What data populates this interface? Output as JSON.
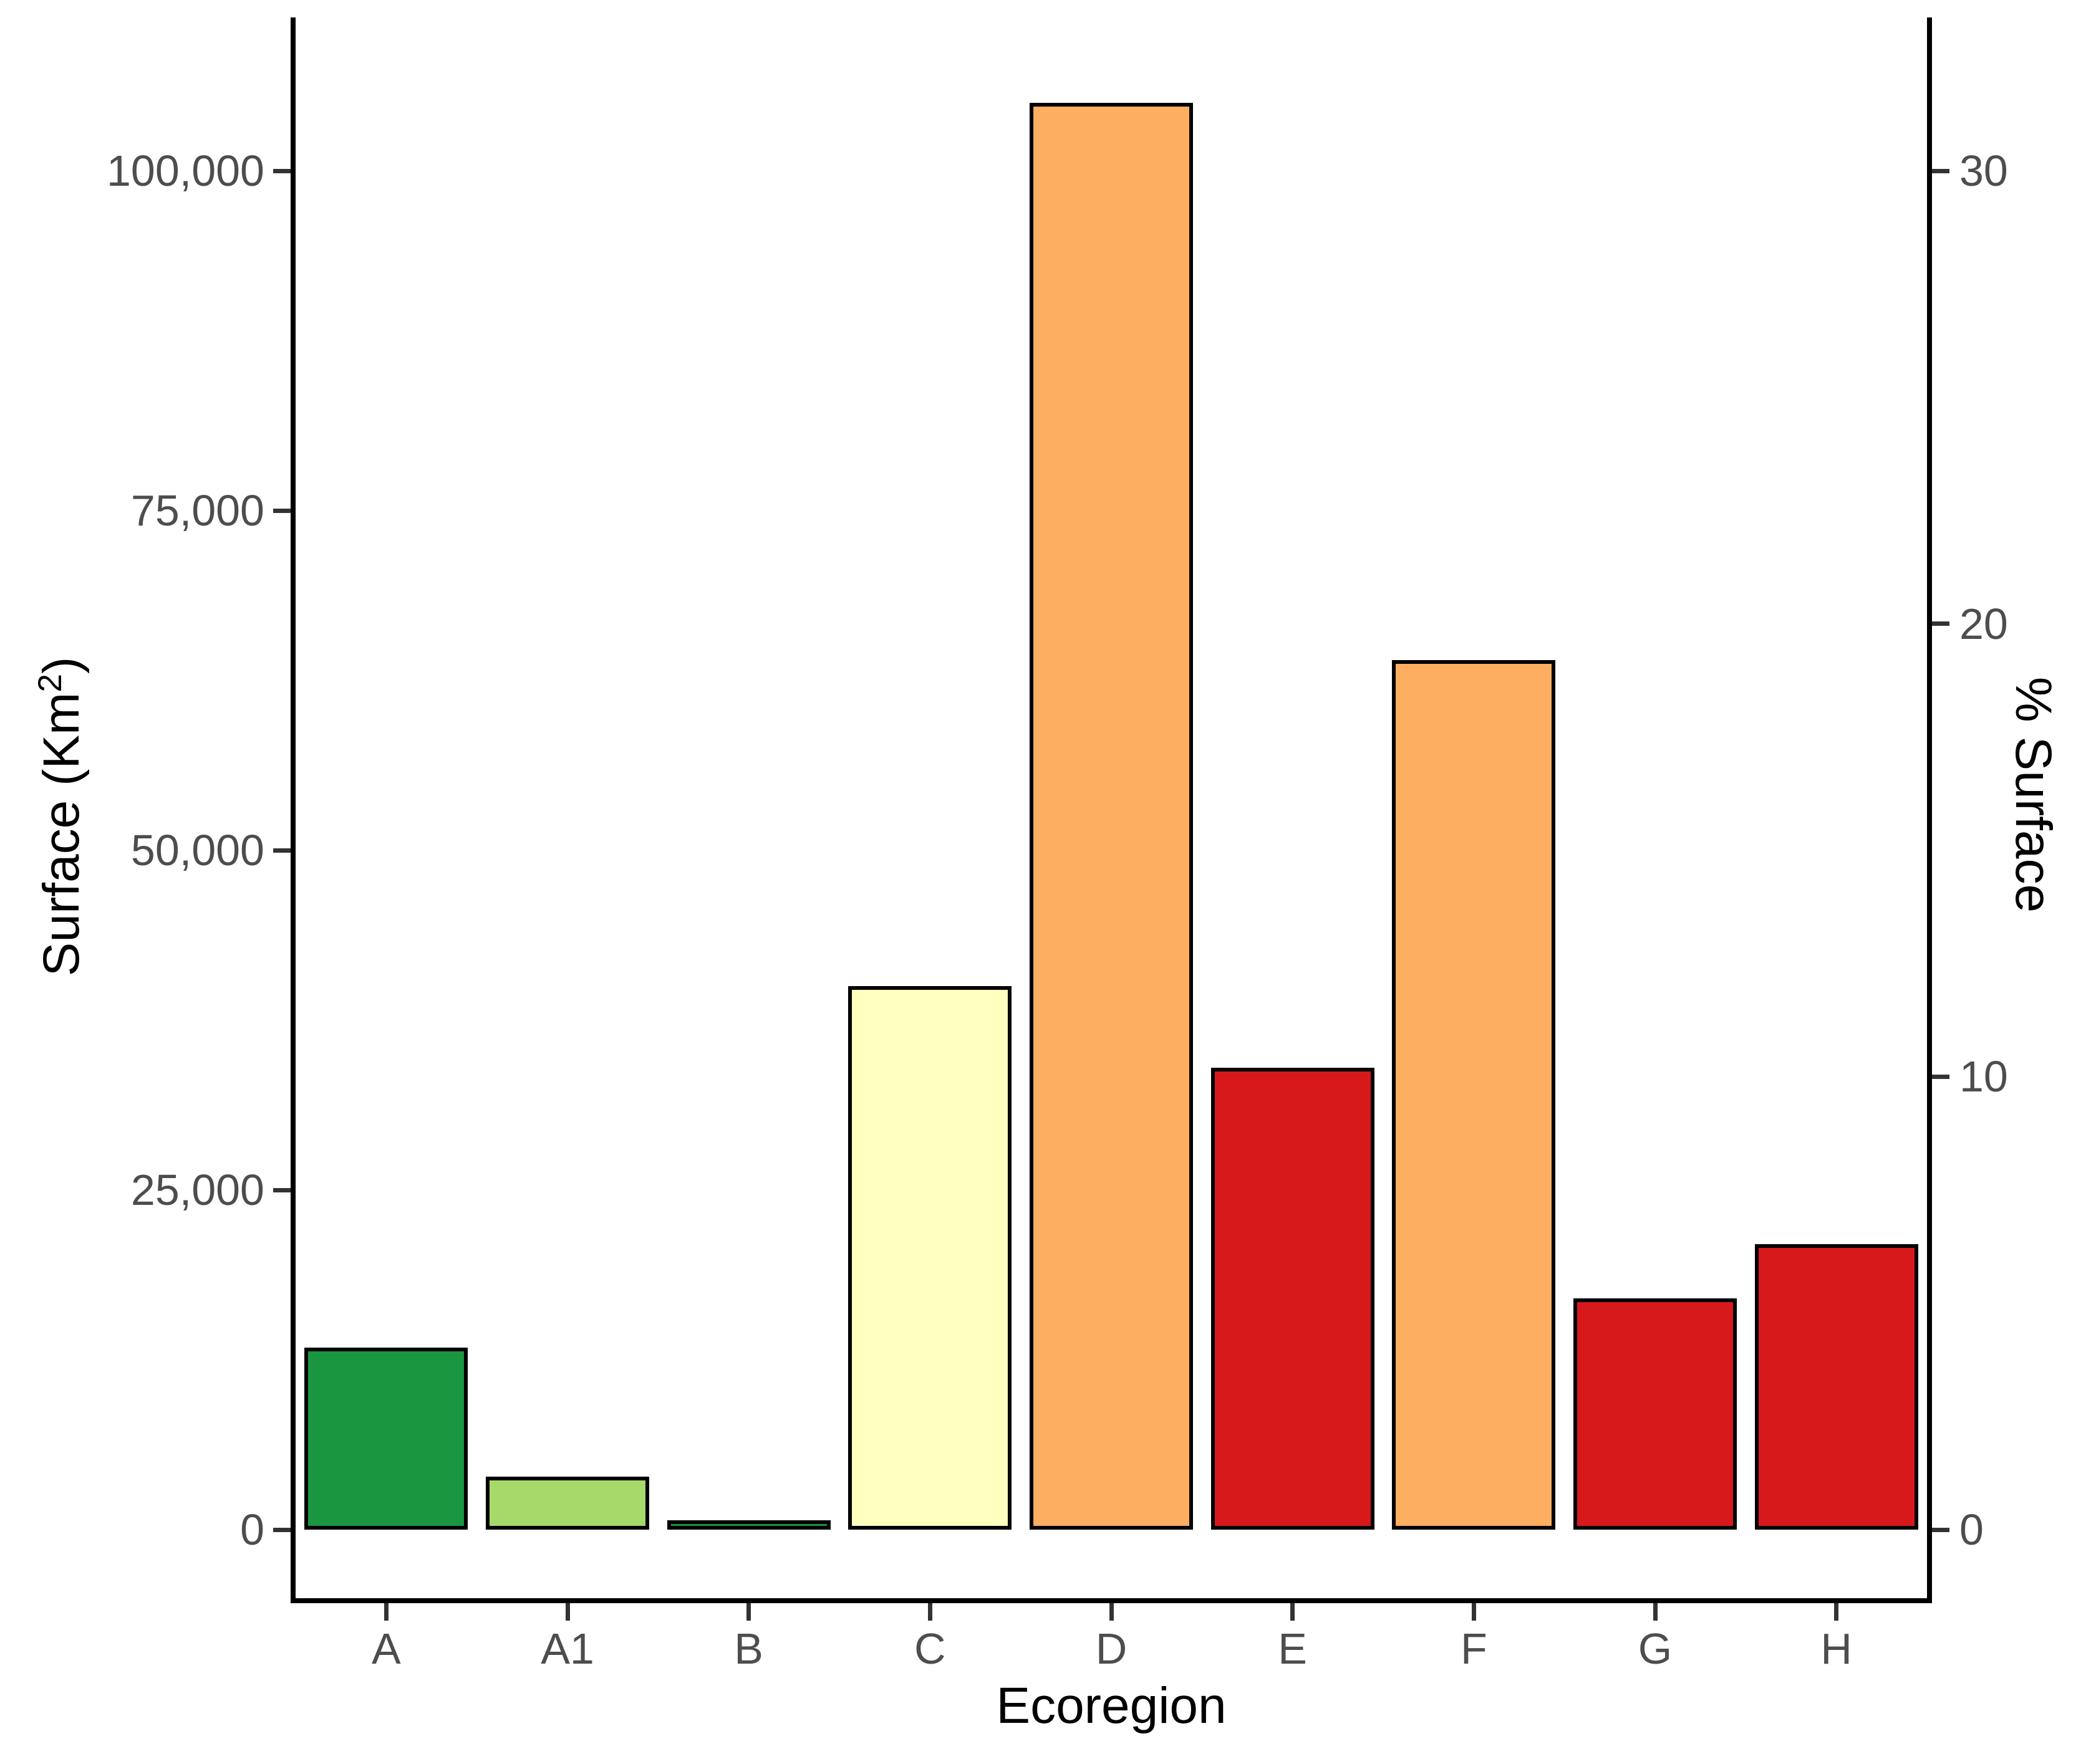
{
  "chart_data": {
    "type": "bar",
    "title": "",
    "categories": [
      "A",
      "A1",
      "B",
      "C",
      "D",
      "E",
      "F",
      "G",
      "H"
    ],
    "values": [
      13400,
      3900,
      700,
      40000,
      105000,
      34000,
      64000,
      17000,
      21000
    ],
    "bar_colors": [
      "#1A9641",
      "#A6D96A",
      "#1A9641",
      "#FFFFBF",
      "#FDAE61",
      "#D7191C",
      "#FDAE61",
      "#D7191C",
      "#D7191C"
    ],
    "bar_border_color": "#000000",
    "xlabel": "Ecoregion",
    "ylabel_left": {
      "prefix": "Surface (Km",
      "superscript": "2",
      "suffix": ")"
    },
    "ylabel_right": "% Surface",
    "y_left_axis": {
      "ticks": [
        0,
        25000,
        50000,
        75000,
        100000
      ],
      "tick_labels": [
        "0",
        "25,000",
        "50,000",
        "75,000",
        "100,000"
      ],
      "range": [
        0,
        110000
      ]
    },
    "y_right_axis": {
      "ticks": [
        0,
        10,
        20,
        30
      ],
      "tick_labels": [
        "0",
        "10",
        "20",
        "30"
      ],
      "range": [
        0,
        33
      ]
    },
    "grid": "none",
    "legend": "none",
    "colors": {
      "axis_line": "#000000",
      "tick_mark": "#333333",
      "tick_text": "#4D4D4D",
      "axis_title_text": "#000000",
      "background": "#ffffff"
    }
  }
}
